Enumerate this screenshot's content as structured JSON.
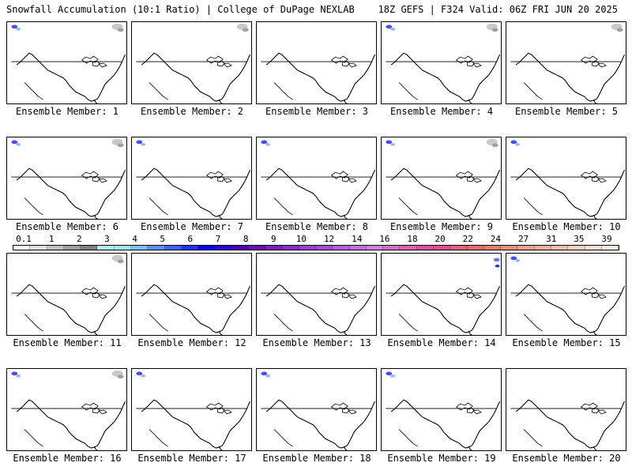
{
  "header": {
    "title_left": "Snowfall Accumulation (10:1 Ratio) | College of DuPage NEXLAB",
    "title_right": "18Z GEFS | F324 Valid: 06Z FRI JUN 20 2025"
  },
  "members": [
    {
      "label": "Ensemble Member: 1",
      "snow": [
        "nw-blue",
        "ne-gray"
      ]
    },
    {
      "label": "Ensemble Member: 2",
      "snow": [
        "ne-gray"
      ]
    },
    {
      "label": "Ensemble Member: 3",
      "snow": []
    },
    {
      "label": "Ensemble Member: 4",
      "snow": [
        "nw-blue",
        "ne-gray"
      ]
    },
    {
      "label": "Ensemble Member: 5",
      "snow": [
        "ne-gray"
      ]
    },
    {
      "label": "Ensemble Member: 6",
      "snow": [
        "nw-blue",
        "ne-gray"
      ]
    },
    {
      "label": "Ensemble Member: 7",
      "snow": [
        "nw-blue"
      ]
    },
    {
      "label": "Ensemble Member: 8",
      "snow": [
        "nw-blue"
      ]
    },
    {
      "label": "Ensemble Member: 9",
      "snow": [
        "nw-blue",
        "ne-gray"
      ]
    },
    {
      "label": "Ensemble Member: 10",
      "snow": [
        "nw-blue"
      ]
    },
    {
      "label": "Ensemble Member: 11",
      "snow": [
        "ne-gray"
      ]
    },
    {
      "label": "Ensemble Member: 12",
      "snow": []
    },
    {
      "label": "Ensemble Member: 13",
      "snow": []
    },
    {
      "label": "Ensemble Member: 14",
      "snow": [
        "ne-blue"
      ]
    },
    {
      "label": "Ensemble Member: 15",
      "snow": [
        "nw-blue"
      ]
    },
    {
      "label": "Ensemble Member: 16",
      "snow": [
        "nw-blue",
        "ne-gray"
      ]
    },
    {
      "label": "Ensemble Member: 17",
      "snow": [
        "nw-blue"
      ]
    },
    {
      "label": "Ensemble Member: 18",
      "snow": [
        "nw-blue"
      ]
    },
    {
      "label": "Ensemble Member: 19",
      "snow": [
        "nw-blue"
      ]
    },
    {
      "label": "Ensemble Member: 20",
      "snow": []
    }
  ],
  "legend": {
    "labels": [
      "0.1",
      "1",
      "2",
      "3",
      "4",
      "5",
      "6",
      "7",
      "8",
      "9",
      "10",
      "12",
      "14",
      "16",
      "18",
      "20",
      "22",
      "24",
      "27",
      "31",
      "35",
      "39"
    ],
    "colors": [
      "#ffffff",
      "#e0e0e0",
      "#c0c0c0",
      "#a0a0a0",
      "#808080",
      "#b0f0f0",
      "#a0e8ff",
      "#80c0ff",
      "#6090ff",
      "#4060ff",
      "#2030ff",
      "#0000ff",
      "#3000d0",
      "#4a00b0",
      "#6a10b0",
      "#7a20c0",
      "#8a30c8",
      "#9a40d0",
      "#a050d8",
      "#b060e0",
      "#c070e0",
      "#d080e0",
      "#d070c8",
      "#e060b0",
      "#e050a0",
      "#e05090",
      "#e06080",
      "#e07070",
      "#e08070",
      "#e89080",
      "#f0a090",
      "#f0b0a0",
      "#f8c0b0",
      "#f8d0c0",
      "#fce0d0",
      "#fff0e0"
    ]
  }
}
